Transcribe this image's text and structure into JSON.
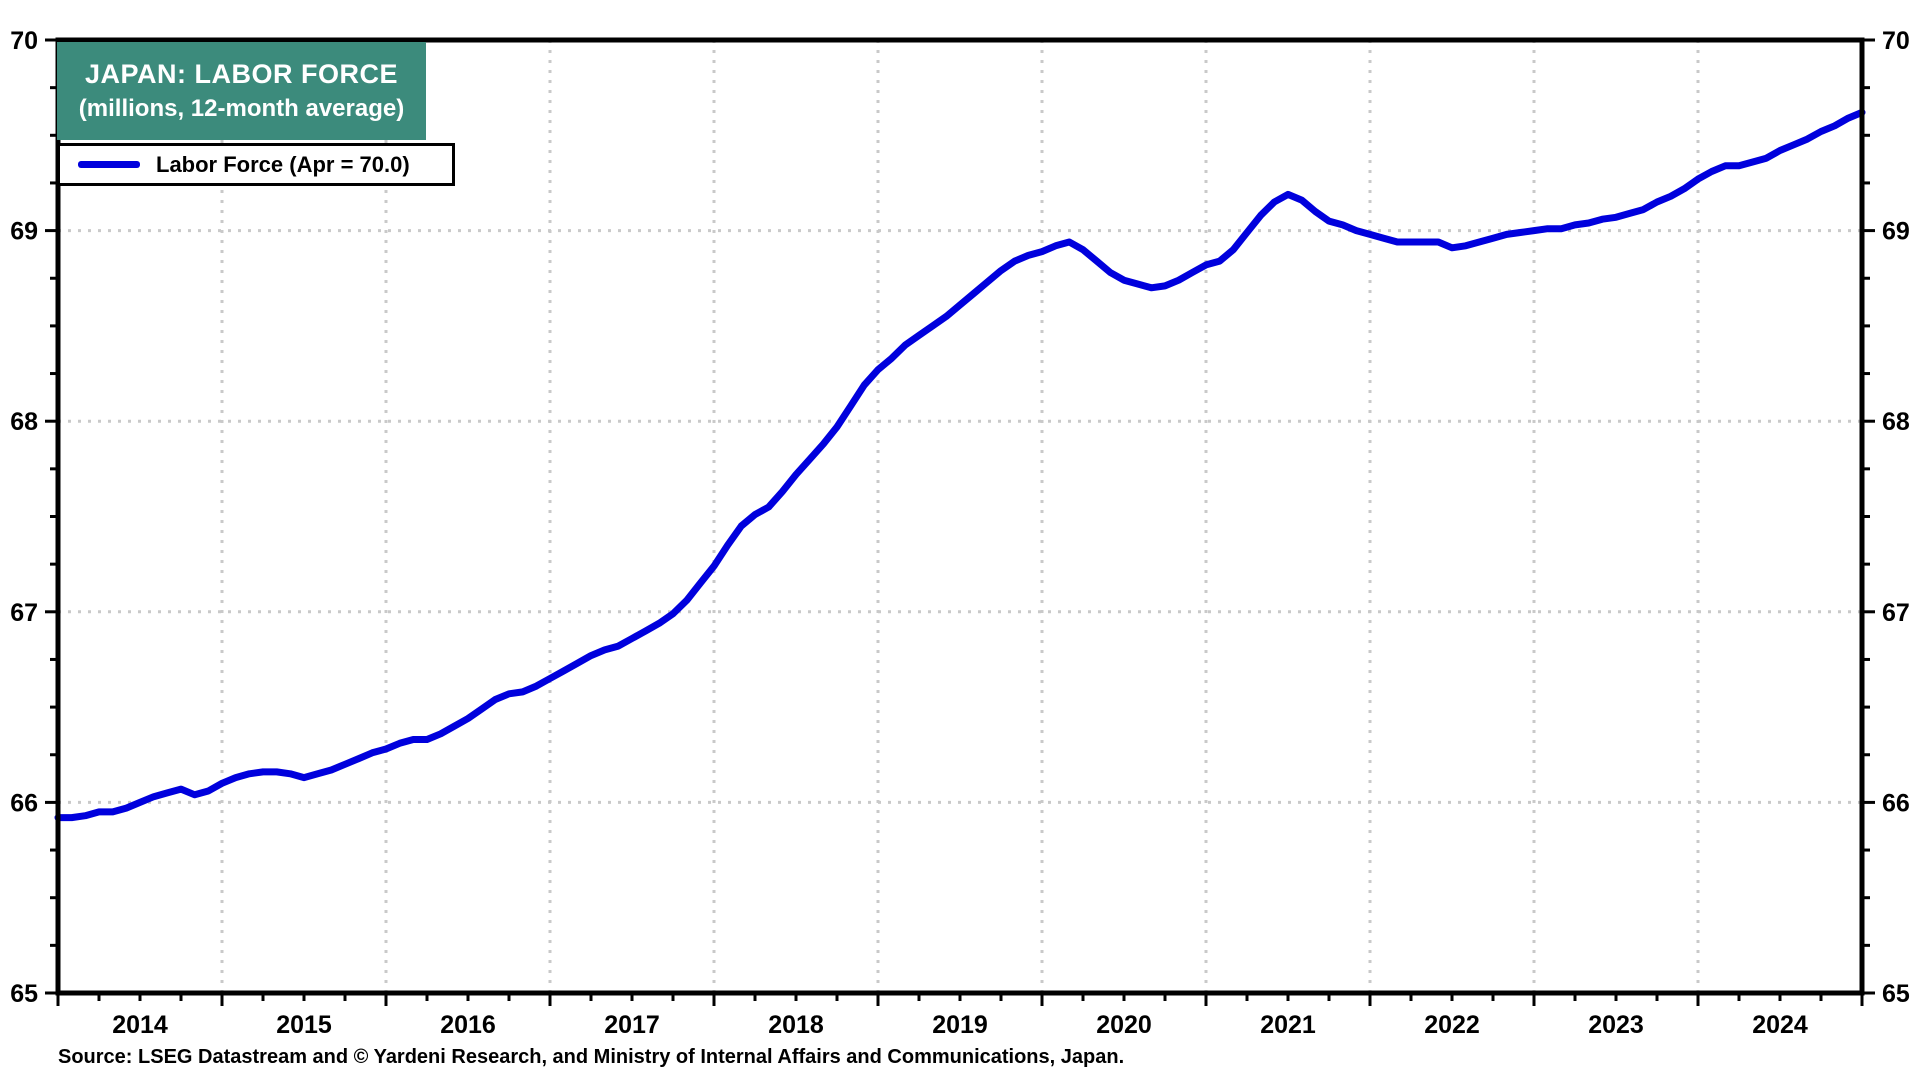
{
  "title": {
    "line1": "JAPAN: LABOR FORCE",
    "line2": "(millions, 12-month average)"
  },
  "legend": {
    "label": "Labor Force (Apr = 70.0)"
  },
  "source": "Source: LSEG Datastream and © Yardeni Research, and Ministry of Internal Affairs and Communications, Japan.",
  "colors": {
    "line": "#0000dd",
    "title_box_bg": "#3c8b7c",
    "grid": "#c9c9c9",
    "axis": "#000000",
    "text": "#000000",
    "legend_border": "#000000"
  },
  "chart_data": {
    "type": "line",
    "title": "JAPAN: LABOR FORCE",
    "subtitle": "(millions, 12-month average)",
    "xlabel": "",
    "ylabel": "millions",
    "ylim": [
      65,
      70
    ],
    "y_major_ticks": [
      65,
      66,
      67,
      68,
      69,
      70
    ],
    "y_minor_step": 0.25,
    "x_year_labels": [
      "2014",
      "2015",
      "2016",
      "2017",
      "2018",
      "2019",
      "2020",
      "2021",
      "2022",
      "2023",
      "2024"
    ],
    "x_minor_tick": "quarterly",
    "grid": "dotted, horizontal at 66-69, vertical at Jan of 2015-2024",
    "legend_position": "top-left",
    "x_start": "2014-01",
    "x_end": "2025-01",
    "series": [
      {
        "name": "Labor Force (Apr = 70.0)",
        "color": "#0000dd",
        "frequency": "monthly",
        "values": [
          65.92,
          65.92,
          65.93,
          65.95,
          65.95,
          65.97,
          66.0,
          66.03,
          66.05,
          66.07,
          66.04,
          66.06,
          66.1,
          66.13,
          66.15,
          66.16,
          66.16,
          66.15,
          66.13,
          66.15,
          66.17,
          66.2,
          66.23,
          66.26,
          66.28,
          66.31,
          66.33,
          66.33,
          66.36,
          66.4,
          66.44,
          66.49,
          66.54,
          66.57,
          66.58,
          66.61,
          66.65,
          66.69,
          66.73,
          66.77,
          66.8,
          66.82,
          66.86,
          66.9,
          66.94,
          66.99,
          67.06,
          67.15,
          67.24,
          67.35,
          67.45,
          67.51,
          67.55,
          67.63,
          67.72,
          67.8,
          67.88,
          67.97,
          68.08,
          68.19,
          68.27,
          68.33,
          68.4,
          68.45,
          68.5,
          68.55,
          68.61,
          68.67,
          68.73,
          68.79,
          68.84,
          68.87,
          68.89,
          68.92,
          68.94,
          68.9,
          68.84,
          68.78,
          68.74,
          68.72,
          68.7,
          68.71,
          68.74,
          68.78,
          68.82,
          68.84,
          68.9,
          68.99,
          69.08,
          69.15,
          69.19,
          69.16,
          69.1,
          69.05,
          69.03,
          69.0,
          68.98,
          68.96,
          68.94,
          68.94,
          68.94,
          68.94,
          68.91,
          68.92,
          68.94,
          68.96,
          68.98,
          68.99,
          69.0,
          69.01,
          69.01,
          69.03,
          69.04,
          69.06,
          69.07,
          69.09,
          69.11,
          69.15,
          69.18,
          69.22,
          69.27,
          69.31,
          69.34,
          69.34,
          69.36,
          69.38,
          69.42,
          69.45,
          69.48,
          69.52,
          69.55,
          69.59,
          69.62
        ]
      }
    ]
  }
}
